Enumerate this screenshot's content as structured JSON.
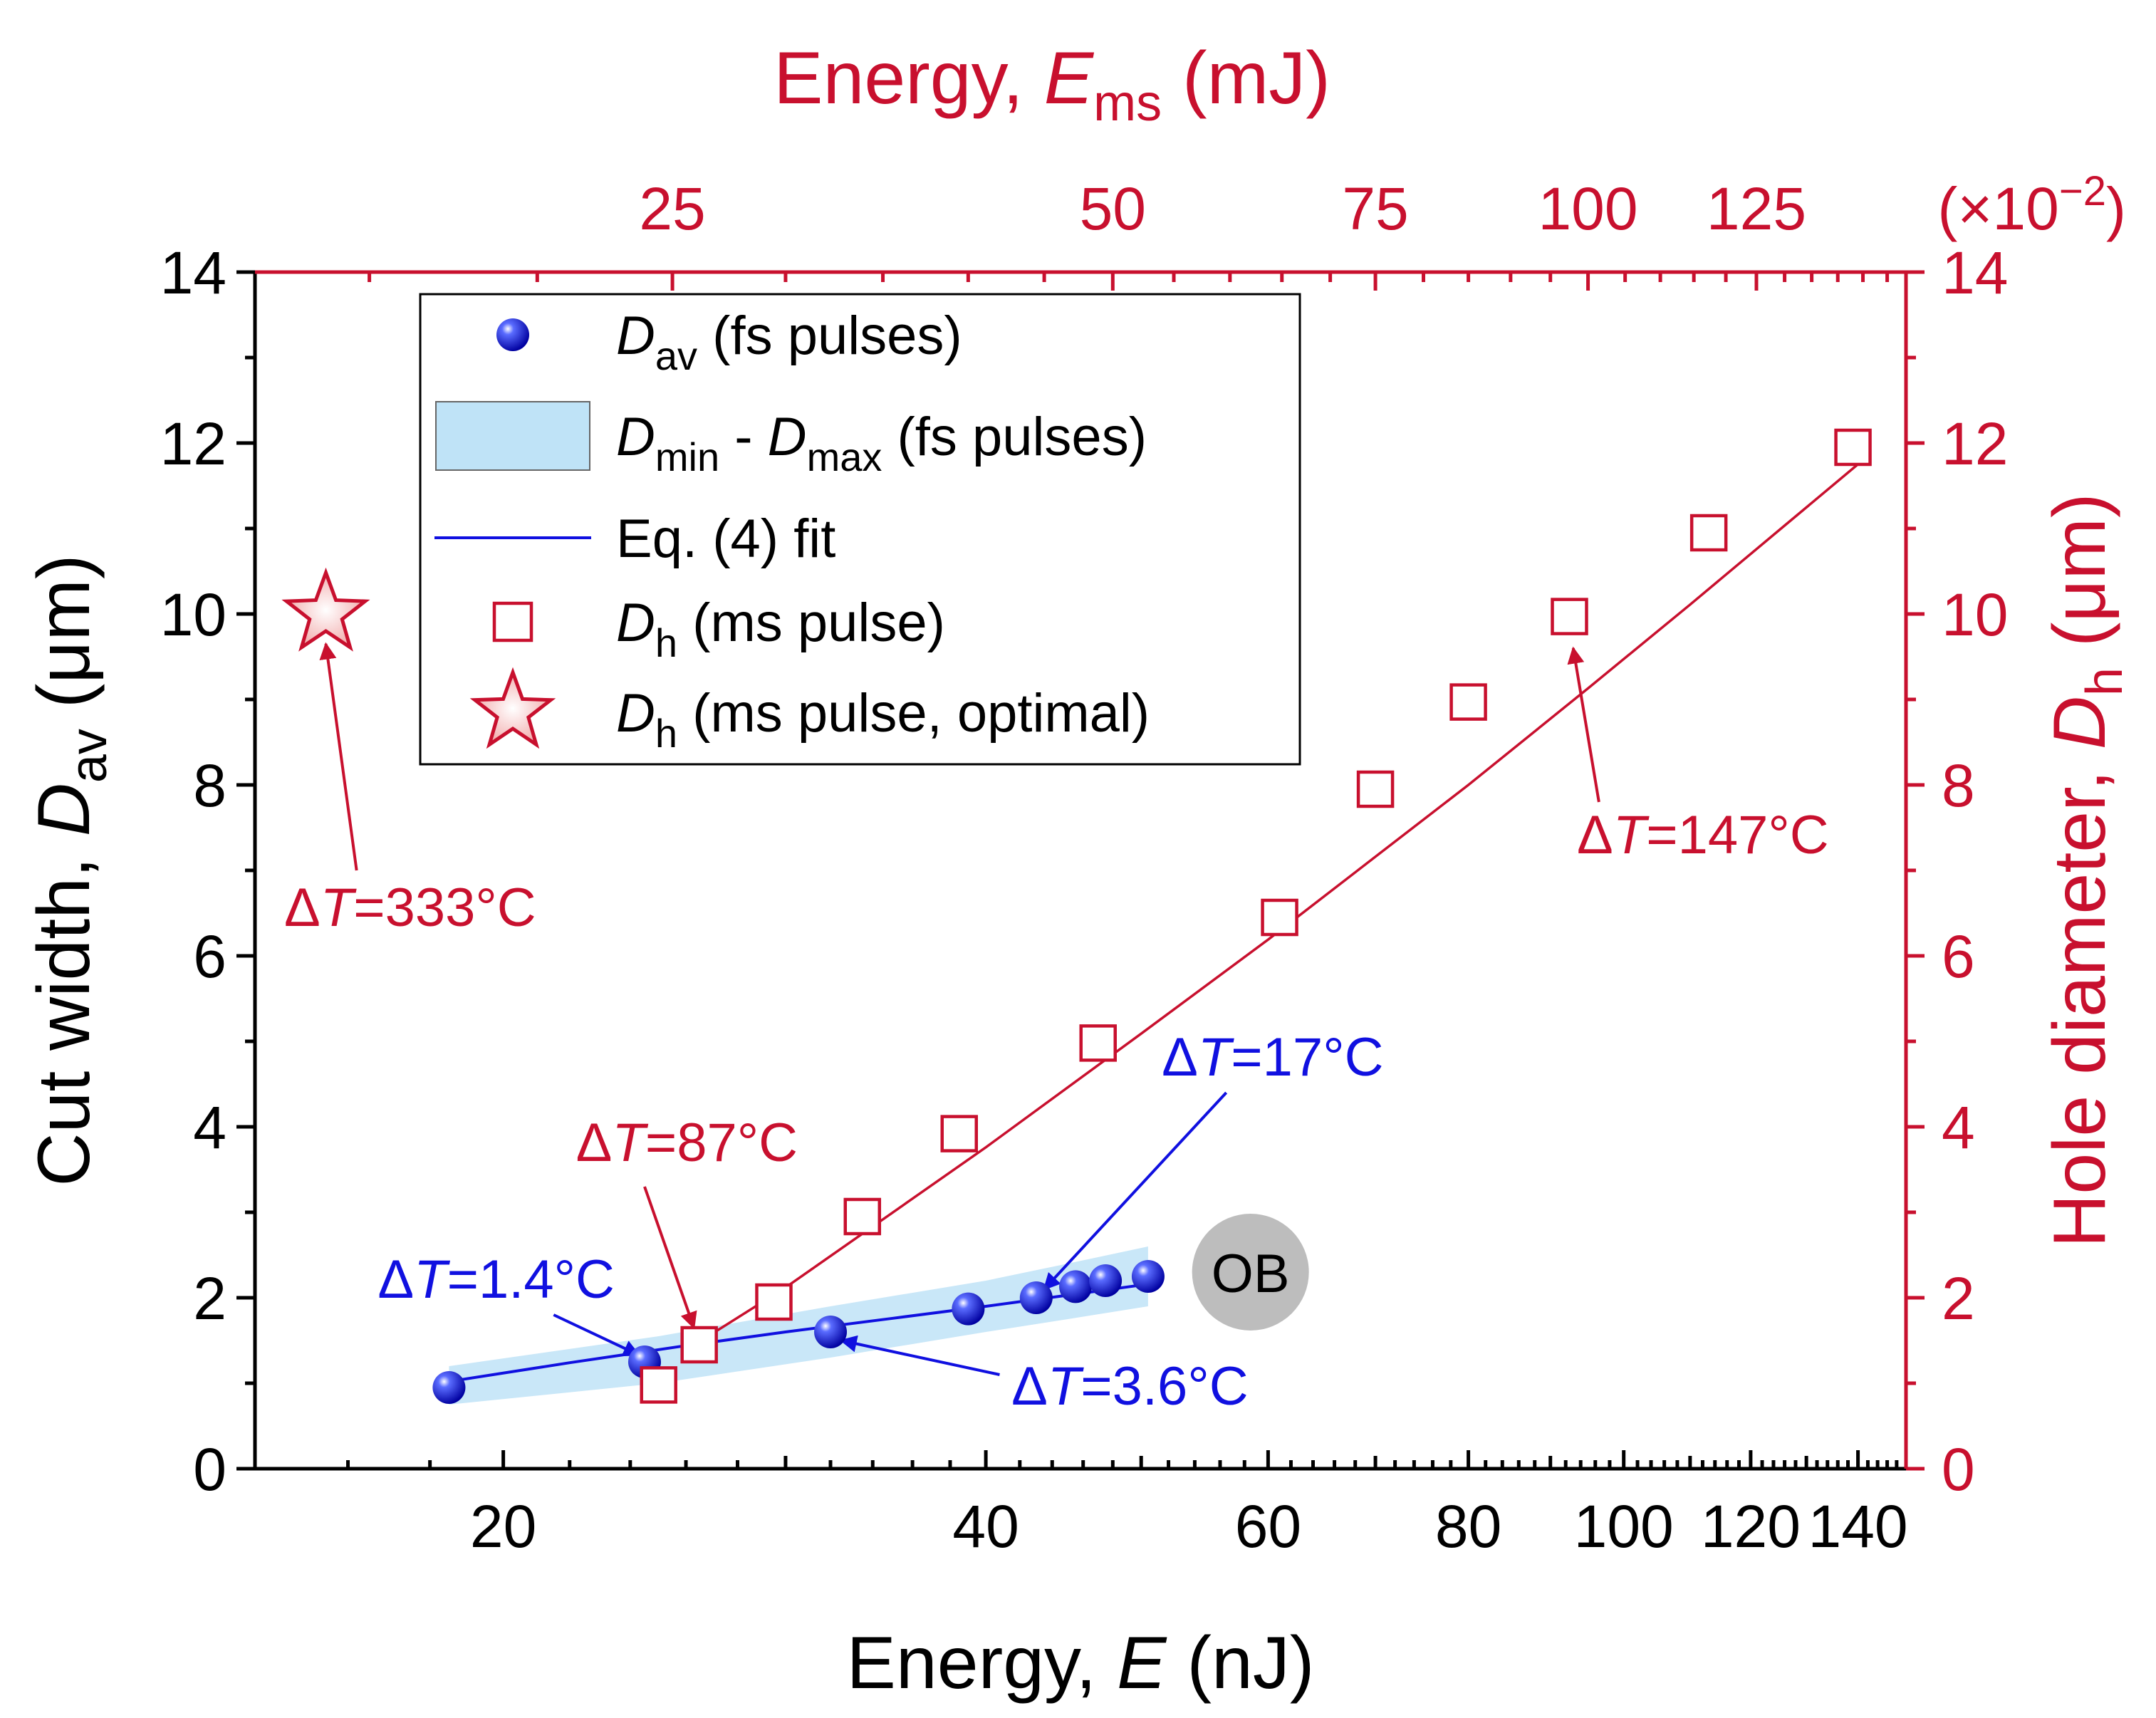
{
  "colors": {
    "red": "#c8102e",
    "blue": "#1010e0",
    "band": "#bfe3f7",
    "ob_badge": "#bdbdbd"
  },
  "chart_data": {
    "type": "scatter",
    "bottom_axis": {
      "label_main": "Energy, ",
      "label_var": "E",
      "label_unit": " (nJ)",
      "scale": "log",
      "range": [
        14,
        150
      ],
      "ticks": [
        {
          "value": 20,
          "label": "20"
        },
        {
          "value": 40,
          "label": "40"
        },
        {
          "value": 60,
          "label": "60"
        },
        {
          "value": 80,
          "label": "80"
        },
        {
          "value": 100,
          "label": "100"
        },
        {
          "value": 120,
          "label": "120"
        },
        {
          "value": 140,
          "label": "140"
        }
      ]
    },
    "top_axis": {
      "label_main": "Energy, ",
      "label_var": "E",
      "label_sub": "ms",
      "label_unit": " (mJ)",
      "multiplier": "(×10",
      "multiplier_exp": "−2",
      "multiplier_close": ")",
      "ticks": [
        {
          "label": "25",
          "bottom_value": 25.5
        },
        {
          "label": "50",
          "bottom_value": 48
        },
        {
          "label": "75",
          "bottom_value": 70
        },
        {
          "label": "100",
          "bottom_value": 95
        },
        {
          "label": "125",
          "bottom_value": 121
        }
      ]
    },
    "left_axis": {
      "label_main": "Cut width, ",
      "label_var": "D",
      "label_sub": "av",
      "label_unit": " (μm)",
      "range": [
        0,
        14
      ],
      "ticks": [
        0,
        2,
        4,
        6,
        8,
        10,
        12,
        14
      ]
    },
    "right_axis": {
      "label_main": "Hole diameter, ",
      "label_var": "D",
      "label_sub": "h",
      "label_unit": " (μm)",
      "range": [
        0,
        14
      ],
      "ticks": [
        0,
        2,
        4,
        6,
        8,
        10,
        12,
        14
      ]
    },
    "series": [
      {
        "name": "D_av (fs pulses)",
        "kind": "points",
        "x": [
          18.5,
          24.5,
          32,
          39,
          43,
          45.5,
          47.5,
          50.5
        ],
        "y": [
          0.95,
          1.25,
          1.6,
          1.87,
          2.0,
          2.13,
          2.2,
          2.25
        ]
      },
      {
        "name": "D_min - D_max (fs pulses)",
        "kind": "band",
        "x": [
          18.5,
          25,
          32,
          40,
          45,
          50.5
        ],
        "y_low": [
          0.75,
          1.0,
          1.3,
          1.6,
          1.75,
          1.9
        ],
        "y_high": [
          1.2,
          1.55,
          1.9,
          2.2,
          2.4,
          2.6
        ]
      },
      {
        "name": "Eq. (4) fit",
        "kind": "line",
        "x": [
          18.5,
          22,
          26,
          30,
          35,
          40,
          45,
          50.5
        ],
        "y": [
          1.02,
          1.24,
          1.44,
          1.6,
          1.76,
          1.9,
          2.03,
          2.16
        ]
      },
      {
        "name": "D_h (ms pulse)",
        "kind": "squares",
        "x": [
          25,
          26.5,
          29.5,
          33.5,
          38.5,
          47,
          61,
          70,
          80,
          92.5,
          113,
          139
        ],
        "y": [
          0.98,
          1.45,
          1.95,
          2.95,
          3.92,
          4.98,
          6.45,
          7.95,
          8.97,
          9.97,
          10.95,
          11.95
        ]
      },
      {
        "name": "Eq. (4) fit (ms)",
        "kind": "red-line",
        "x": [
          27,
          30,
          40,
          50,
          60,
          70,
          80,
          95,
          110,
          125,
          141
        ],
        "y": [
          1.58,
          2.12,
          3.76,
          5.09,
          6.19,
          7.16,
          8.0,
          9.13,
          10.11,
          10.98,
          11.8
        ]
      },
      {
        "name": "D_h (ms pulse, optimal)",
        "kind": "star",
        "x": [
          15.5
        ],
        "y": [
          10.0
        ]
      }
    ],
    "legend": {
      "position": "top-left",
      "entries": [
        {
          "kind": "ball",
          "var": "D",
          "sub": "av",
          "text": " (fs pulses)"
        },
        {
          "kind": "band",
          "var": "D",
          "sub": "min",
          "mid": " - ",
          "var2": "D",
          "sub2": "max",
          "text": " (fs pulses)"
        },
        {
          "kind": "line",
          "text": "Eq. (4) fit"
        },
        {
          "kind": "square",
          "var": "D",
          "sub": "h",
          "text": " (ms pulse)"
        },
        {
          "kind": "star",
          "var": "D",
          "sub": "h",
          "text": " (ms pulse, optimal)"
        }
      ]
    },
    "annotations": [
      {
        "id": "dt333",
        "color": "red",
        "delta": "Δ",
        "var": "T",
        "value": "=333°C",
        "text_x": 14.6,
        "text_y": 6.35,
        "arrow_from": [
          16.2,
          7.0
        ],
        "arrow_to": [
          15.5,
          9.65
        ]
      },
      {
        "id": "dt147",
        "color": "red",
        "delta": "Δ",
        "var": "T",
        "value": "=147°C",
        "text_x": 93.5,
        "text_y": 7.2,
        "arrow_from": [
          96.5,
          7.8
        ],
        "arrow_to": [
          93.0,
          9.6
        ]
      },
      {
        "id": "dt87",
        "color": "red",
        "delta": "Δ",
        "var": "T",
        "value": "=87°C",
        "text_x": 22.2,
        "text_y": 3.6,
        "arrow_from": [
          24.5,
          3.3
        ],
        "arrow_to": [
          26.3,
          1.65
        ]
      },
      {
        "id": "dt14",
        "color": "blue",
        "delta": "Δ",
        "var": "T",
        "value": "=1.4°C",
        "text_x": 16.7,
        "text_y": 2.0,
        "arrow_from": [
          21.5,
          1.8
        ],
        "arrow_to": [
          24.3,
          1.33
        ]
      },
      {
        "id": "dt36",
        "color": "blue",
        "delta": "Δ",
        "var": "T",
        "value": "=3.6°C",
        "text_x": 41.5,
        "text_y": 0.75,
        "arrow_from": [
          40.8,
          1.1
        ],
        "arrow_to": [
          32.5,
          1.5
        ]
      },
      {
        "id": "dt17",
        "color": "blue",
        "delta": "Δ",
        "var": "T",
        "value": "=17°C",
        "text_x": 51.5,
        "text_y": 4.6,
        "arrow_from": [
          56.5,
          4.4
        ],
        "arrow_to": [
          43.5,
          2.1
        ]
      }
    ],
    "badge": {
      "text": "OB",
      "x": 58.5,
      "y": 2.3
    },
    "grid": false
  }
}
